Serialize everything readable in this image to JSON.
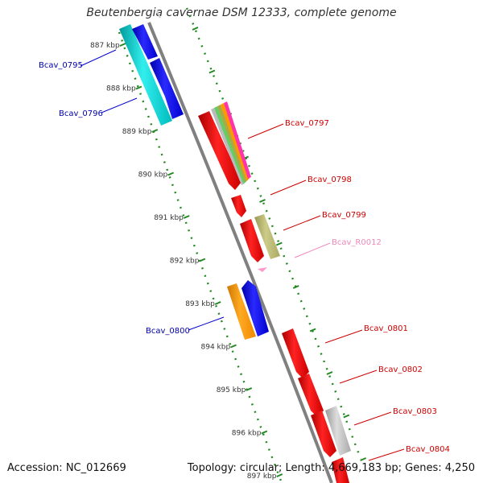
{
  "title": "Beutenbergia cavernae DSM 12333, complete genome",
  "footer": {
    "accession": "Accession: NC_012669",
    "summary": "Topology: circular; Length: 4,669,183 bp; Genes: 4,250"
  },
  "ticks": [
    {
      "label": "887 kbp",
      "kb": 887
    },
    {
      "label": "888 kbp",
      "kb": 888
    },
    {
      "label": "889 kbp",
      "kb": 889
    },
    {
      "label": "890 kbp",
      "kb": 890
    },
    {
      "label": "891 kbp",
      "kb": 891
    },
    {
      "label": "892 kbp",
      "kb": 892
    },
    {
      "label": "893 kbp",
      "kb": 893
    },
    {
      "label": "894 kbp",
      "kb": 894
    },
    {
      "label": "895 kbp",
      "kb": 895
    },
    {
      "label": "896 kbp",
      "kb": 896
    },
    {
      "label": "897 kbp",
      "kb": 897
    }
  ],
  "gene_labels": [
    {
      "id": "Bcav_0795",
      "text": "Bcav_0795",
      "color": "#0000aa"
    },
    {
      "id": "Bcav_0796",
      "text": "Bcav_0796",
      "color": "#0000aa"
    },
    {
      "id": "Bcav_0797",
      "text": "Bcav_0797",
      "color": "#cc0000"
    },
    {
      "id": "Bcav_0798",
      "text": "Bcav_0798",
      "color": "#cc0000"
    },
    {
      "id": "Bcav_0799",
      "text": "Bcav_0799",
      "color": "#cc0000"
    },
    {
      "id": "Bcav_R0012",
      "text": "Bcav_R0012",
      "color": "#ee88bb"
    },
    {
      "id": "Bcav_0800",
      "text": "Bcav_0800",
      "color": "#0000aa"
    },
    {
      "id": "Bcav_0801",
      "text": "Bcav_0801",
      "color": "#cc0000"
    },
    {
      "id": "Bcav_0802",
      "text": "Bcav_0802",
      "color": "#cc0000"
    },
    {
      "id": "Bcav_0803",
      "text": "Bcav_0803",
      "color": "#cc0000"
    },
    {
      "id": "Bcav_0804",
      "text": "Bcav_0804",
      "color": "#cc0000"
    }
  ],
  "colors": {
    "backbone": "#808080",
    "tick": "#228822",
    "forward_gene": "#ff0000",
    "reverse_gene": "#0000ff",
    "cog_cyan": "#00cccc",
    "cog_olive": "#bbbb77",
    "cog_orange": "#ff9900",
    "cog_gray": "#bbbbbb",
    "rna": "#ff99cc"
  }
}
